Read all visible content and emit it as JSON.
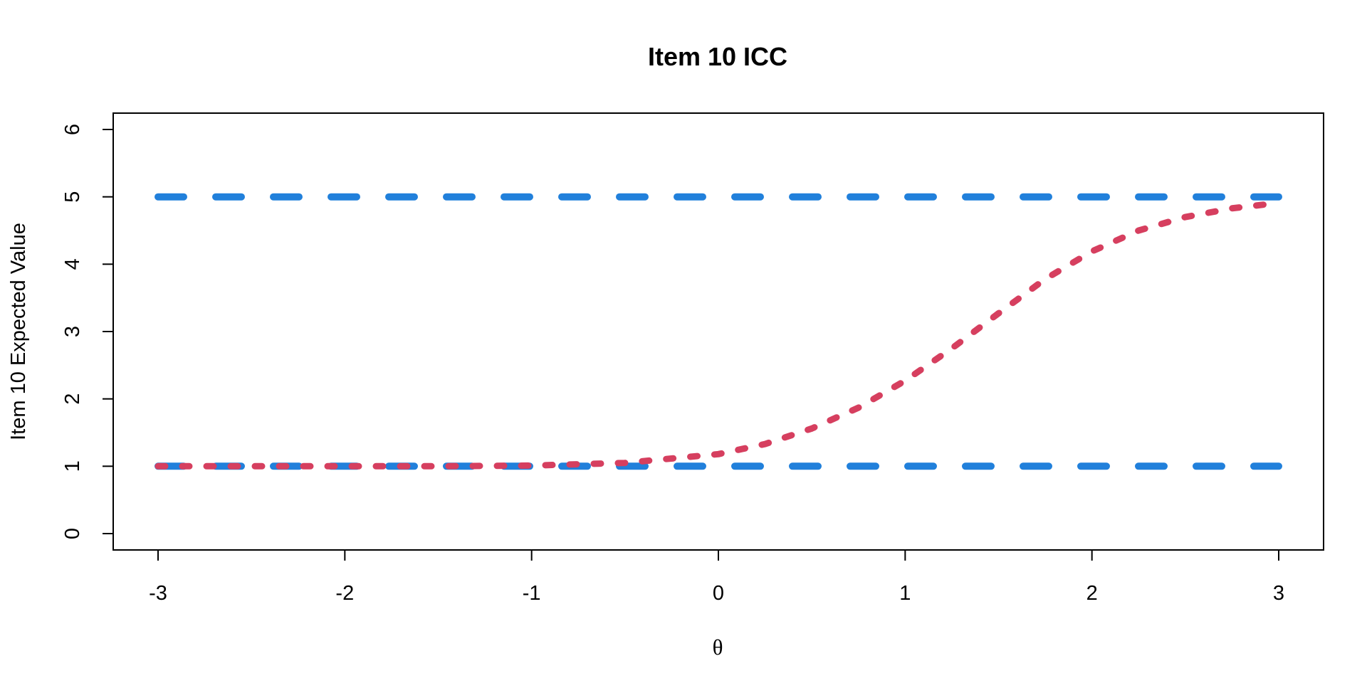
{
  "chart_data": {
    "type": "line",
    "title": "Item 10 ICC",
    "xlabel": "θ",
    "ylabel": "Item 10 Expected Value",
    "xlim": [
      -3,
      3
    ],
    "ylim": [
      0,
      6
    ],
    "xticks": [
      -3,
      -2,
      -1,
      0,
      1,
      2,
      3
    ],
    "yticks": [
      0,
      1,
      2,
      3,
      4,
      5,
      6
    ],
    "grid": false,
    "series": [
      {
        "style": "dashed",
        "color": "#2180DB",
        "x": [
          -3,
          3
        ],
        "y": [
          5,
          5
        ]
      },
      {
        "style": "dashed",
        "color": "#2180DB",
        "x": [
          -3,
          3
        ],
        "y": [
          1,
          1
        ]
      },
      {
        "style": "dotted",
        "color": "#D63F5F",
        "x": [
          -3.0,
          -2.5,
          -2.0,
          -1.5,
          -1.0,
          -0.5,
          0.0,
          0.25,
          0.5,
          0.75,
          1.0,
          1.25,
          1.5,
          1.75,
          2.0,
          2.25,
          2.5,
          2.75,
          3.0
        ],
        "y": [
          1.0,
          1.0,
          1.0,
          1.0,
          1.01,
          1.05,
          1.18,
          1.33,
          1.56,
          1.87,
          2.27,
          2.75,
          3.27,
          3.78,
          4.19,
          4.5,
          4.7,
          4.83,
          4.91
        ]
      }
    ]
  }
}
